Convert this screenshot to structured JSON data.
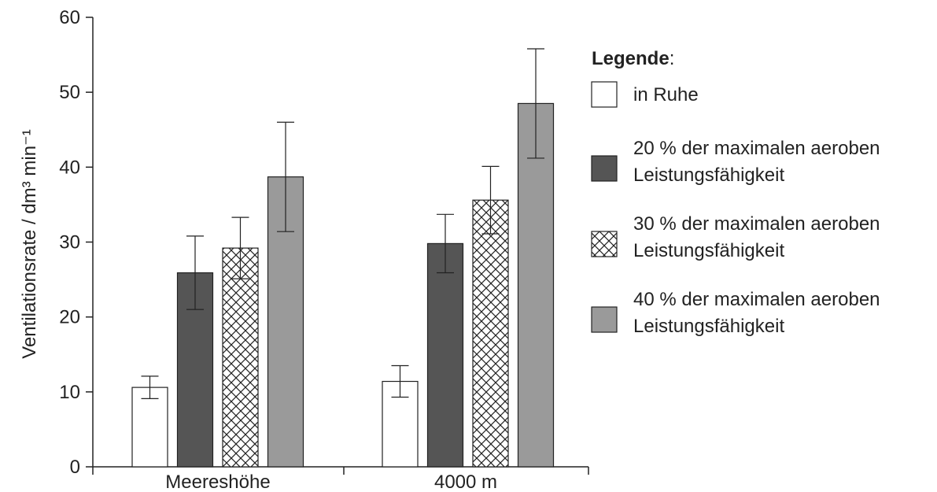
{
  "chart_data": {
    "type": "bar",
    "ylabel": "Ventilationsrate / dm³ min⁻¹",
    "ylim": [
      0,
      60
    ],
    "yticks": [
      "0",
      "10",
      "20",
      "30",
      "40",
      "50",
      "60"
    ],
    "categories": [
      "Meereshöhe",
      "4000 m"
    ],
    "series": [
      {
        "name": "in Ruhe",
        "values": [
          10.6,
          11.4
        ],
        "errors": [
          1.5,
          2.1
        ],
        "fill": "#ffffff",
        "pattern": "none"
      },
      {
        "name": "20 % der maximalen aeroben Leistungsfähigkeit",
        "values": [
          25.9,
          29.8
        ],
        "errors": [
          4.9,
          3.9
        ],
        "fill": "#555555",
        "pattern": "none"
      },
      {
        "name": "30 % der maximalen aeroben Leistungsfähigkeit",
        "values": [
          29.2,
          35.6
        ],
        "errors": [
          4.1,
          4.5
        ],
        "fill": "#ffffff",
        "pattern": "crosshatch"
      },
      {
        "name": "40 % der maximalen aeroben Leistungsfähigkeit",
        "values": [
          38.7,
          48.5
        ],
        "errors": [
          7.3,
          7.3
        ],
        "fill": "#9a9a9a",
        "pattern": "none"
      }
    ],
    "legend": {
      "title_bold": "Legende",
      "title_suffix": ":",
      "items": [
        {
          "line1": "in Ruhe",
          "line2": ""
        },
        {
          "line1": "20 % der maximalen aeroben",
          "line2": "Leistungsfähigkeit"
        },
        {
          "line1": "30 % der maximalen aeroben",
          "line2": "Leistungsfähigkeit"
        },
        {
          "line1": "40 % der maximalen aeroben",
          "line2": "Leistungsfähigkeit"
        }
      ],
      "placement": "right"
    },
    "grid": false
  }
}
